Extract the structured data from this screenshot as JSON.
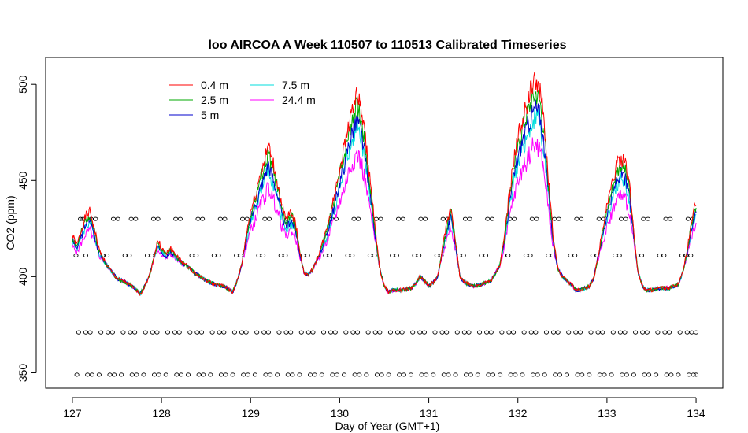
{
  "chart_data": {
    "type": "line",
    "title": "loo AIRCOA A  Week 110507 to 110513  Calibrated Timeseries",
    "xlabel": "Day of Year (GMT+1)",
    "ylabel": "CO2 (ppm)",
    "xlim": [
      126.7,
      134.3
    ],
    "ylim": [
      342,
      514
    ],
    "x_ticks": [
      127,
      128,
      129,
      130,
      131,
      132,
      133,
      134
    ],
    "y_ticks": [
      350,
      400,
      450,
      500
    ],
    "legend_position": "top-left",
    "baseline": [
      [
        127.0,
        418
      ],
      [
        127.05,
        414
      ],
      [
        127.1,
        420
      ],
      [
        127.15,
        426
      ],
      [
        127.2,
        428
      ],
      [
        127.25,
        420
      ],
      [
        127.3,
        412
      ],
      [
        127.4,
        405
      ],
      [
        127.5,
        399
      ],
      [
        127.6,
        397
      ],
      [
        127.7,
        394
      ],
      [
        127.76,
        391
      ],
      [
        127.8,
        394
      ],
      [
        127.86,
        400
      ],
      [
        127.92,
        410
      ],
      [
        127.96,
        416
      ],
      [
        128.0,
        413
      ],
      [
        128.05,
        410
      ],
      [
        128.1,
        413
      ],
      [
        128.2,
        408
      ],
      [
        128.3,
        405
      ],
      [
        128.4,
        401
      ],
      [
        128.5,
        398
      ],
      [
        128.6,
        396
      ],
      [
        128.7,
        395
      ],
      [
        128.8,
        392
      ],
      [
        128.85,
        398
      ],
      [
        128.9,
        406
      ],
      [
        128.95,
        418
      ],
      [
        129.0,
        428
      ],
      [
        129.05,
        434
      ],
      [
        129.1,
        442
      ],
      [
        129.15,
        448
      ],
      [
        129.2,
        455
      ],
      [
        129.25,
        448
      ],
      [
        129.3,
        440
      ],
      [
        129.35,
        430
      ],
      [
        129.4,
        424
      ],
      [
        129.45,
        428
      ],
      [
        129.5,
        424
      ],
      [
        129.55,
        412
      ],
      [
        129.6,
        402
      ],
      [
        129.65,
        401
      ],
      [
        129.7,
        404
      ],
      [
        129.75,
        409
      ],
      [
        129.8,
        414
      ],
      [
        129.85,
        420
      ],
      [
        129.9,
        428
      ],
      [
        129.95,
        436
      ],
      [
        130.0,
        446
      ],
      [
        130.05,
        454
      ],
      [
        130.1,
        464
      ],
      [
        130.15,
        472
      ],
      [
        130.2,
        476
      ],
      [
        130.25,
        468
      ],
      [
        130.3,
        454
      ],
      [
        130.35,
        438
      ],
      [
        130.4,
        420
      ],
      [
        130.45,
        404
      ],
      [
        130.5,
        395
      ],
      [
        130.55,
        392
      ],
      [
        130.6,
        393
      ],
      [
        130.7,
        393
      ],
      [
        130.8,
        394
      ],
      [
        130.85,
        396
      ],
      [
        130.9,
        400
      ],
      [
        130.95,
        398
      ],
      [
        131.0,
        395
      ],
      [
        131.05,
        397
      ],
      [
        131.1,
        400
      ],
      [
        131.15,
        412
      ],
      [
        131.2,
        422
      ],
      [
        131.25,
        430
      ],
      [
        131.3,
        416
      ],
      [
        131.35,
        400
      ],
      [
        131.4,
        397
      ],
      [
        131.5,
        395
      ],
      [
        131.6,
        396
      ],
      [
        131.7,
        398
      ],
      [
        131.8,
        406
      ],
      [
        131.85,
        418
      ],
      [
        131.9,
        434
      ],
      [
        131.95,
        448
      ],
      [
        132.0,
        458
      ],
      [
        132.05,
        466
      ],
      [
        132.1,
        472
      ],
      [
        132.15,
        478
      ],
      [
        132.2,
        482
      ],
      [
        132.25,
        478
      ],
      [
        132.3,
        462
      ],
      [
        132.35,
        438
      ],
      [
        132.4,
        416
      ],
      [
        132.45,
        404
      ],
      [
        132.5,
        400
      ],
      [
        132.55,
        398
      ],
      [
        132.6,
        396
      ],
      [
        132.65,
        393
      ],
      [
        132.7,
        393
      ],
      [
        132.8,
        395
      ],
      [
        132.85,
        399
      ],
      [
        132.9,
        410
      ],
      [
        132.95,
        420
      ],
      [
        133.0,
        430
      ],
      [
        133.05,
        438
      ],
      [
        133.1,
        446
      ],
      [
        133.15,
        450
      ],
      [
        133.2,
        448
      ],
      [
        133.25,
        440
      ],
      [
        133.3,
        420
      ],
      [
        133.35,
        402
      ],
      [
        133.4,
        395
      ],
      [
        133.45,
        393
      ],
      [
        133.5,
        393
      ],
      [
        133.6,
        394
      ],
      [
        133.7,
        394
      ],
      [
        133.8,
        396
      ],
      [
        133.85,
        402
      ],
      [
        133.9,
        412
      ],
      [
        133.95,
        424
      ],
      [
        134.0,
        432
      ]
    ],
    "series": [
      {
        "name": "0.4 m",
        "color": "#ff0000",
        "peak_offset": 28,
        "seed": 1
      },
      {
        "name": "2.5 m",
        "color": "#00aa00",
        "peak_offset": 20,
        "seed": 2
      },
      {
        "name": "5 m",
        "color": "#0000cc",
        "peak_offset": 8,
        "seed": 3
      },
      {
        "name": "7.5 m",
        "color": "#00dddd",
        "peak_offset": 2,
        "seed": 4
      },
      {
        "name": "24.4 m",
        "color": "#ff00ff",
        "peak_offset": -18,
        "seed": 5
      }
    ],
    "point_rows": [
      {
        "y": 430,
        "values": [
          127.09,
          127.12,
          127.21,
          127.26,
          127.46,
          127.51,
          127.66,
          127.71,
          127.91,
          127.96,
          128.16,
          128.21,
          128.41,
          128.46,
          128.66,
          128.71,
          128.91,
          128.96,
          129.16,
          129.21,
          129.41,
          129.46,
          129.66,
          129.71,
          129.91,
          129.96,
          130.16,
          130.21,
          130.41,
          130.46,
          130.66,
          130.71,
          130.91,
          130.96,
          131.16,
          131.21,
          131.41,
          131.46,
          131.66,
          131.71,
          131.91,
          131.96,
          132.16,
          132.21,
          132.41,
          132.46,
          132.66,
          132.71,
          132.91,
          132.96,
          133.16,
          133.21,
          133.41,
          133.46,
          133.66,
          133.71,
          133.91,
          133.96
        ]
      },
      {
        "y": 411,
        "values": [
          127.04,
          127.15,
          127.34,
          127.39,
          127.59,
          127.64,
          127.84,
          127.89,
          128.09,
          128.14,
          128.34,
          128.39,
          128.59,
          128.64,
          128.84,
          128.89,
          129.09,
          129.14,
          129.34,
          129.39,
          129.59,
          129.64,
          129.84,
          129.89,
          130.09,
          130.14,
          130.34,
          130.39,
          130.59,
          130.64,
          130.84,
          130.89,
          131.09,
          131.14,
          131.34,
          131.39,
          131.59,
          131.64,
          131.84,
          131.89,
          132.09,
          132.14,
          132.34,
          132.39,
          132.59,
          132.64,
          132.84,
          132.89,
          133.09,
          133.14,
          133.34,
          133.39,
          133.59,
          133.64,
          133.84,
          133.89,
          133.94
        ]
      },
      {
        "y": 371,
        "values": [
          127.07,
          127.15,
          127.2,
          127.32,
          127.4,
          127.45,
          127.57,
          127.65,
          127.7,
          127.82,
          127.9,
          127.95,
          128.07,
          128.15,
          128.2,
          128.32,
          128.4,
          128.45,
          128.57,
          128.65,
          128.7,
          128.82,
          128.9,
          128.95,
          129.07,
          129.15,
          129.2,
          129.32,
          129.4,
          129.45,
          129.57,
          129.65,
          129.7,
          129.82,
          129.9,
          129.95,
          130.07,
          130.15,
          130.2,
          130.32,
          130.4,
          130.45,
          130.57,
          130.65,
          130.7,
          130.82,
          130.9,
          130.95,
          131.07,
          131.15,
          131.2,
          131.32,
          131.4,
          131.45,
          131.57,
          131.65,
          131.7,
          131.82,
          131.9,
          131.95,
          132.07,
          132.15,
          132.2,
          132.32,
          132.4,
          132.45,
          132.57,
          132.65,
          132.7,
          132.82,
          132.9,
          132.95,
          133.07,
          133.15,
          133.2,
          133.32,
          133.4,
          133.45,
          133.57,
          133.65,
          133.7,
          133.82,
          133.9,
          133.95,
          134.0
        ]
      },
      {
        "y": 349,
        "values": [
          127.05,
          127.17,
          127.22,
          127.3,
          127.42,
          127.47,
          127.55,
          127.67,
          127.72,
          127.8,
          127.92,
          127.97,
          128.05,
          128.17,
          128.22,
          128.3,
          128.42,
          128.47,
          128.55,
          128.67,
          128.72,
          128.8,
          128.92,
          128.97,
          129.05,
          129.17,
          129.22,
          129.3,
          129.42,
          129.47,
          129.55,
          129.67,
          129.72,
          129.8,
          129.92,
          129.97,
          130.05,
          130.17,
          130.22,
          130.3,
          130.42,
          130.47,
          130.55,
          130.67,
          130.72,
          130.8,
          130.92,
          130.97,
          131.05,
          131.17,
          131.22,
          131.3,
          131.42,
          131.47,
          131.55,
          131.67,
          131.72,
          131.8,
          131.92,
          131.97,
          132.05,
          132.17,
          132.22,
          132.3,
          132.42,
          132.47,
          132.55,
          132.67,
          132.72,
          132.8,
          132.92,
          132.97,
          133.05,
          133.17,
          133.22,
          133.3,
          133.42,
          133.47,
          133.55,
          133.67,
          133.72,
          133.8,
          133.92,
          133.97,
          134.0
        ]
      }
    ]
  }
}
